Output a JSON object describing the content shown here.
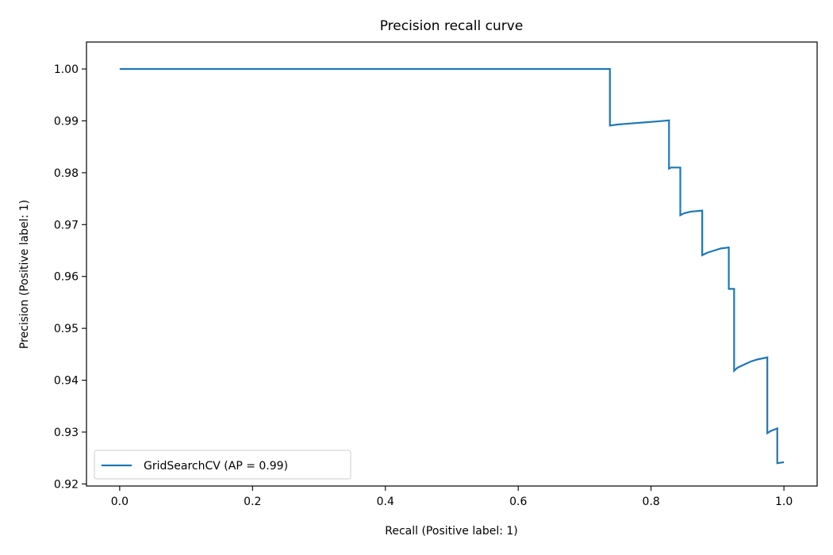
{
  "chart_data": {
    "type": "line",
    "title": "Precision recall curve",
    "xlabel": "Recall (Positive label: 1)",
    "ylabel": "Precision (Positive label: 1)",
    "xlim": [
      -0.05,
      1.05
    ],
    "ylim": [
      0.9196,
      1.0052
    ],
    "x_ticks": [
      0.0,
      0.2,
      0.4,
      0.6,
      0.8,
      1.0
    ],
    "x_tick_labels": [
      "0.0",
      "0.2",
      "0.4",
      "0.6",
      "0.8",
      "1.0"
    ],
    "y_ticks": [
      0.92,
      0.93,
      0.94,
      0.95,
      0.96,
      0.97,
      0.98,
      0.99,
      1.0
    ],
    "y_tick_labels": [
      "0.92",
      "0.93",
      "0.94",
      "0.95",
      "0.96",
      "0.97",
      "0.98",
      "0.99",
      "1.00"
    ],
    "grid": false,
    "legend_position": "lower-left",
    "series": [
      {
        "name": "GridSearchCV (AP = 0.99)",
        "color": "#1f77b4",
        "x": [
          0.0,
          0.738,
          0.738,
          0.75,
          0.77,
          0.79,
          0.81,
          0.827,
          0.827,
          0.83,
          0.844,
          0.844,
          0.85,
          0.86,
          0.877,
          0.877,
          0.885,
          0.895,
          0.905,
          0.917,
          0.917,
          0.925,
          0.925,
          0.93,
          0.94,
          0.95,
          0.96,
          0.975,
          0.975,
          0.98,
          0.99,
          0.99,
          1.0
        ],
        "y": [
          1.0,
          1.0,
          0.9891,
          0.9893,
          0.9895,
          0.9897,
          0.9899,
          0.9901,
          0.9808,
          0.981,
          0.981,
          0.9718,
          0.9722,
          0.9725,
          0.9727,
          0.9641,
          0.9646,
          0.965,
          0.9654,
          0.9656,
          0.9576,
          0.9576,
          0.9418,
          0.9424,
          0.943,
          0.9436,
          0.944,
          0.9444,
          0.9298,
          0.9302,
          0.9307,
          0.924,
          0.9242
        ]
      }
    ]
  }
}
